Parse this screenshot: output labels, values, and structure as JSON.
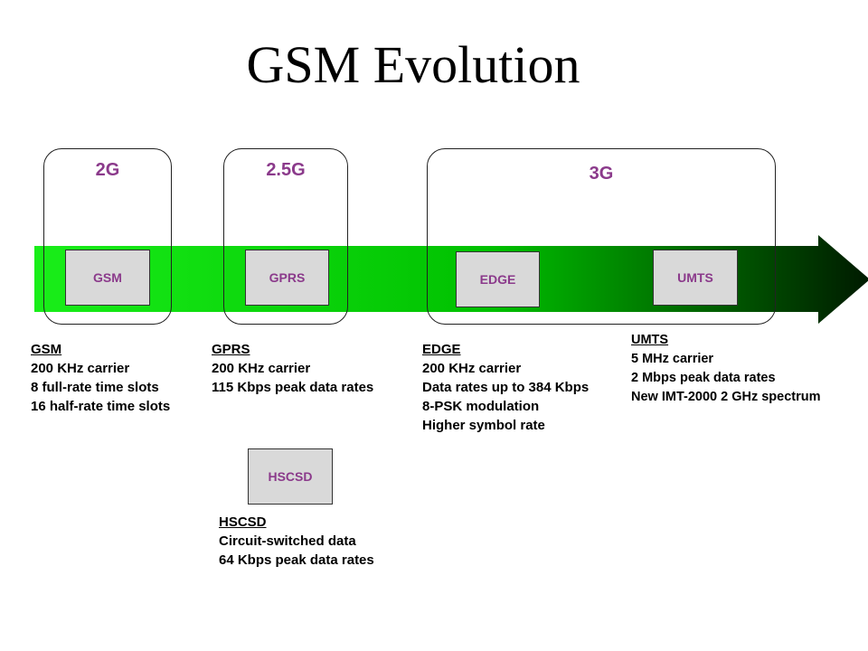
{
  "title": "GSM Evolution",
  "colors": {
    "generation_label": "#8b3a8b",
    "tech_box_text": "#8b3a8b",
    "arrow_start": "#19ee19",
    "arrow_mid": "#00c000",
    "arrow_end": "#001a00",
    "box_fill": "#d9d9d9"
  },
  "generations": [
    {
      "label": "2G"
    },
    {
      "label": "2.5G"
    },
    {
      "label": "3G"
    }
  ],
  "tech_boxes": {
    "gsm": "GSM",
    "gprs": "GPRS",
    "edge": "EDGE",
    "umts": "UMTS",
    "hscsd": "HSCSD"
  },
  "descriptions": {
    "gsm": {
      "heading": "GSM",
      "lines": [
        "200 KHz carrier",
        "8 full-rate time slots",
        "16 half-rate time slots"
      ]
    },
    "gprs": {
      "heading": "GPRS",
      "lines": [
        "200 KHz carrier",
        "115 Kbps peak data rates"
      ]
    },
    "edge": {
      "heading": "EDGE",
      "lines": [
        "200 KHz carrier",
        "Data rates up to 384 Kbps",
        "8-PSK modulation",
        "Higher symbol rate"
      ]
    },
    "umts": {
      "heading": "UMTS",
      "lines": [
        "5 MHz carrier",
        "2 Mbps peak data rates",
        "New IMT-2000 2 GHz spectrum"
      ]
    },
    "hscsd": {
      "heading": "HSCSD",
      "lines": [
        "Circuit-switched data",
        "64 Kbps peak data rates"
      ]
    }
  }
}
